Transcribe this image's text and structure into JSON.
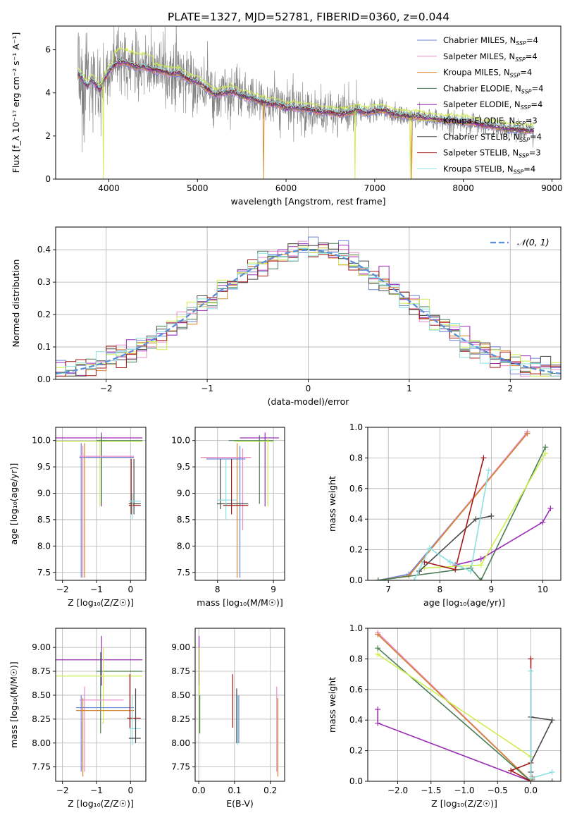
{
  "title": "PLATE=1327, MJD=52781, FIBERID=0360, z=0.044",
  "colors": {
    "Chabrier MILES": "#6b82d6",
    "Salpeter MILES": "#e98ccd",
    "Kroupa MILES": "#d6852c",
    "Chabrier ELODIE": "#4a7e56",
    "Salpeter ELODIE": "#9b2db5",
    "Kroupa ELODIE": "#ccef4e",
    "Chabrier STELIB": "#484848",
    "Salpeter STELIB": "#a31818",
    "Kroupa STELIB": "#8be0e0",
    "data": "#808080",
    "gaussian": "#5b8ed9",
    "grid": "#b0b0b0"
  },
  "chart_data": [
    {
      "id": "spectrum",
      "type": "line",
      "xlabel": "wavelength [Angstrom, rest frame]",
      "ylabel": "Flux [f_λ 10⁻¹⁷ erg cm⁻² s⁻¹ A⁻¹]",
      "xlim": [
        3400,
        9100
      ],
      "ylim": [
        0,
        7.1
      ],
      "xticks": [
        4000,
        5000,
        6000,
        7000,
        8000,
        9000
      ],
      "yticks": [
        0,
        2,
        4,
        6
      ],
      "grid": false,
      "legend_position": "upper right",
      "legend": [
        {
          "label": "Chabrier MILES, N",
          "sub": "SSP",
          "suffix": "=4",
          "color_key": "Chabrier MILES"
        },
        {
          "label": "Salpeter MILES, N",
          "sub": "SSP",
          "suffix": "=4",
          "color_key": "Salpeter MILES"
        },
        {
          "label": "Kroupa MILES, N",
          "sub": "SSP",
          "suffix": "=4",
          "color_key": "Kroupa MILES"
        },
        {
          "label": "Chabrier ELODIE, N",
          "sub": "SSP",
          "suffix": "=4",
          "color_key": "Chabrier ELODIE"
        },
        {
          "label": "Salpeter ELODIE, N",
          "sub": "SSP",
          "suffix": "=4",
          "color_key": "Salpeter ELODIE"
        },
        {
          "label": "Kroupa ELODIE, N",
          "sub": "SSP",
          "suffix": "=3",
          "color_key": "Kroupa ELODIE"
        },
        {
          "label": "Chabrier STELIB, N",
          "sub": "SSP",
          "suffix": "=4",
          "color_key": "Chabrier STELIB"
        },
        {
          "label": "Salpeter STELIB, N",
          "sub": "SSP",
          "suffix": "=3",
          "color_key": "Salpeter STELIB"
        },
        {
          "label": "Kroupa STELIB, N",
          "sub": "SSP",
          "suffix": "=4",
          "color_key": "Kroupa STELIB"
        }
      ],
      "model_continuum": [
        [
          3650,
          4.9
        ],
        [
          3700,
          4.6
        ],
        [
          3760,
          4.3
        ],
        [
          3800,
          4.6
        ],
        [
          3850,
          4.4
        ],
        [
          3900,
          4.1
        ],
        [
          3950,
          4.6
        ],
        [
          4000,
          5.0
        ],
        [
          4100,
          5.4
        ],
        [
          4200,
          5.4
        ],
        [
          4300,
          5.2
        ],
        [
          4400,
          5.2
        ],
        [
          4500,
          5.05
        ],
        [
          4600,
          5.0
        ],
        [
          4700,
          4.9
        ],
        [
          4800,
          4.9
        ],
        [
          4900,
          4.6
        ],
        [
          5000,
          4.5
        ],
        [
          5100,
          4.2
        ],
        [
          5200,
          3.9
        ],
        [
          5300,
          4.0
        ],
        [
          5400,
          4.05
        ],
        [
          5500,
          3.85
        ],
        [
          5600,
          3.75
        ],
        [
          5700,
          3.6
        ],
        [
          5800,
          3.5
        ],
        [
          5900,
          3.45
        ],
        [
          6000,
          3.3
        ],
        [
          6100,
          3.3
        ],
        [
          6200,
          3.25
        ],
        [
          6300,
          3.2
        ],
        [
          6400,
          3.1
        ],
        [
          6500,
          3.1
        ],
        [
          6600,
          3.0
        ],
        [
          6700,
          3.05
        ],
        [
          6800,
          3.2
        ],
        [
          6900,
          3.05
        ],
        [
          7000,
          3.15
        ],
        [
          7100,
          3.2
        ],
        [
          7200,
          3.0
        ],
        [
          7300,
          2.95
        ],
        [
          7400,
          2.9
        ],
        [
          7500,
          2.9
        ],
        [
          7600,
          2.8
        ],
        [
          7700,
          2.75
        ],
        [
          7800,
          2.7
        ],
        [
          7900,
          2.7
        ],
        [
          8000,
          2.65
        ],
        [
          8100,
          2.6
        ],
        [
          8200,
          2.5
        ],
        [
          8300,
          2.45
        ],
        [
          8400,
          2.4
        ],
        [
          8500,
          2.3
        ],
        [
          8600,
          2.3
        ],
        [
          8700,
          2.25
        ],
        [
          8800,
          2.25
        ]
      ],
      "dips": [
        {
          "x": 3935,
          "series": "Kroupa ELODIE"
        },
        {
          "x": 5745,
          "series": "Kroupa MILES"
        },
        {
          "x": 6780,
          "series": "Kroupa ELODIE"
        },
        {
          "x": 7420,
          "series": "Kroupa MILES"
        },
        {
          "x": 7405,
          "series": "Kroupa ELODIE"
        }
      ]
    },
    {
      "id": "residuals",
      "type": "bar",
      "xlabel": "(data-model)/error",
      "ylabel": "Normed distribution",
      "xlim": [
        -2.5,
        2.5
      ],
      "ylim": [
        0,
        0.47
      ],
      "xticks": [
        -2,
        -1,
        0,
        1,
        2
      ],
      "yticks": [
        0.0,
        0.1,
        0.2,
        0.3,
        0.4
      ],
      "grid": true,
      "bin_width": 0.1,
      "legend": "𝒩(0, 1)"
    },
    {
      "id": "age_vs_Z",
      "type": "scatter",
      "xlabel": "Z [log₁₀(Z/Z☉)]",
      "ylabel": "age  [log₁₀(age/yr)]",
      "xlim": [
        -2.2,
        0.45
      ],
      "ylim": [
        7.35,
        10.25
      ],
      "xticks": [
        -2,
        -1,
        0
      ],
      "yticks": [
        7.5,
        8.0,
        8.5,
        9.0,
        9.5,
        10.0
      ],
      "grid": true
    },
    {
      "id": "age_vs_mass",
      "type": "scatter",
      "xlabel": "mass [log₁₀(M/M☉)]",
      "ylabel": "",
      "xlim": [
        7.6,
        9.2
      ],
      "ylim": [
        7.35,
        10.25
      ],
      "xticks": [
        8,
        9
      ],
      "yticks": [
        7.5,
        8.0,
        8.5,
        9.0,
        9.5,
        10.0
      ],
      "grid": true
    },
    {
      "id": "weight_vs_age",
      "type": "line",
      "xlabel": "age  [log₁₀(age/yr)]",
      "ylabel": "mass weight",
      "xlim": [
        6.6,
        10.35
      ],
      "ylim": [
        0,
        1.0
      ],
      "xticks": [
        7,
        8,
        9,
        10
      ],
      "yticks": [
        0.0,
        0.2,
        0.4,
        0.6,
        0.8,
        1.0
      ],
      "grid": true,
      "series": [
        {
          "name": "Chabrier MILES",
          "points": [
            [
              6.8,
              0.0
            ],
            [
              7.4,
              0.04
            ],
            [
              9.7,
              0.96
            ]
          ]
        },
        {
          "name": "Salpeter MILES",
          "points": [
            [
              6.8,
              0.0
            ],
            [
              7.4,
              0.03
            ],
            [
              9.7,
              0.97
            ]
          ]
        },
        {
          "name": "Kroupa MILES",
          "points": [
            [
              6.8,
              0.0
            ],
            [
              7.4,
              0.03
            ],
            [
              9.7,
              0.96
            ]
          ]
        },
        {
          "name": "Chabrier ELODIE",
          "points": [
            [
              6.8,
              0.0
            ],
            [
              8.6,
              0.08
            ],
            [
              8.8,
              0.0
            ],
            [
              10.05,
              0.87
            ]
          ]
        },
        {
          "name": "Salpeter ELODIE",
          "points": [
            [
              8.3,
              0.1
            ],
            [
              8.8,
              0.14
            ],
            [
              10.0,
              0.38
            ],
            [
              10.15,
              0.47
            ]
          ]
        },
        {
          "name": "Kroupa ELODIE",
          "points": [
            [
              7.7,
              0.08
            ],
            [
              8.8,
              0.1
            ],
            [
              10.05,
              0.83
            ]
          ]
        },
        {
          "name": "Chabrier STELIB",
          "points": [
            [
              7.6,
              0.06
            ],
            [
              8.7,
              0.4
            ],
            [
              9.0,
              0.42
            ]
          ]
        },
        {
          "name": "Salpeter STELIB",
          "points": [
            [
              7.7,
              0.12
            ],
            [
              8.3,
              0.07
            ],
            [
              8.85,
              0.8
            ]
          ]
        },
        {
          "name": "Kroupa STELIB",
          "points": [
            [
              7.5,
              0.0
            ],
            [
              7.8,
              0.21
            ],
            [
              8.2,
              0.12
            ],
            [
              8.6,
              0.06
            ],
            [
              8.95,
              0.72
            ]
          ]
        }
      ]
    },
    {
      "id": "mass_vs_Z",
      "type": "scatter",
      "xlabel": "Z [log₁₀(Z/Z☉)]",
      "ylabel": "mass [log₁₀(M/M☉)]",
      "xlim": [
        -2.2,
        0.45
      ],
      "ylim": [
        7.6,
        9.2
      ],
      "xticks": [
        -2,
        -1,
        0
      ],
      "yticks": [
        7.75,
        8.0,
        8.25,
        8.5,
        8.75,
        9.0
      ],
      "grid": true
    },
    {
      "id": "mass_vs_EBV",
      "type": "scatter",
      "xlabel": "E(B-V)",
      "ylabel": "",
      "xlim": [
        -0.01,
        0.24
      ],
      "ylim": [
        7.6,
        9.2
      ],
      "xticks": [
        0.0,
        0.1,
        0.2
      ],
      "yticks": [
        7.75,
        8.0,
        8.25,
        8.5,
        8.75,
        9.0
      ],
      "grid": true,
      "errorbars": [
        {
          "name": "Salpeter ELODIE",
          "x": 0.001,
          "y0": 8.6,
          "y1": 9.12
        },
        {
          "name": "Kroupa ELODIE",
          "x": 0.002,
          "y0": 8.1,
          "y1": 9.0
        },
        {
          "name": "Chabrier ELODIE",
          "x": 0.003,
          "y0": 8.1,
          "y1": 8.5
        },
        {
          "name": "Salpeter STELIB",
          "x": 0.095,
          "y0": 8.16,
          "y1": 8.72
        },
        {
          "name": "Chabrier STELIB",
          "x": 0.106,
          "y0": 8.0,
          "y1": 8.57
        },
        {
          "name": "Kroupa STELIB",
          "x": 0.109,
          "y0": 7.98,
          "y1": 8.5
        },
        {
          "name": "Chabrier MILES",
          "x": 0.112,
          "y0": 8.0,
          "y1": 8.5
        },
        {
          "name": "Salpeter MILES",
          "x": 0.218,
          "y0": 7.7,
          "y1": 8.59
        },
        {
          "name": "Kroupa MILES",
          "x": 0.221,
          "y0": 7.65,
          "y1": 8.47
        }
      ]
    },
    {
      "id": "weight_vs_Z",
      "type": "line",
      "xlabel": "Z [log₁₀(Z/Z☉)]",
      "ylabel": "mass weight",
      "xlim": [
        -2.45,
        0.45
      ],
      "ylim": [
        0,
        1.0
      ],
      "xticks": [
        -2.0,
        -1.5,
        -1.0,
        -0.5,
        0.0
      ],
      "yticks": [
        0.0,
        0.2,
        0.4,
        0.6,
        0.8,
        1.0
      ],
      "grid": true,
      "series": [
        {
          "name": "Chabrier MILES",
          "points": [
            [
              -2.3,
              0.96
            ],
            [
              0.0,
              0.0
            ],
            [
              0.02,
              0.01
            ]
          ]
        },
        {
          "name": "Salpeter MILES",
          "points": [
            [
              -2.3,
              0.97
            ],
            [
              0.0,
              0.0
            ],
            [
              0.02,
              0.03
            ]
          ]
        },
        {
          "name": "Kroupa MILES",
          "points": [
            [
              -2.3,
              0.96
            ],
            [
              0.0,
              0.0
            ],
            [
              0.02,
              0.02
            ]
          ]
        },
        {
          "name": "Chabrier ELODIE",
          "points": [
            [
              -2.3,
              0.87
            ],
            [
              0.0,
              0.0
            ],
            [
              0.32,
              0.0
            ]
          ]
        },
        {
          "name": "Salpeter ELODIE",
          "points": [
            [
              -2.3,
              0.47
            ],
            [
              -2.3,
              0.38
            ],
            [
              0.0,
              0.0
            ]
          ]
        },
        {
          "name": "Kroupa ELODIE",
          "points": [
            [
              -2.3,
              0.83
            ],
            [
              0.0,
              0.16
            ],
            [
              0.0,
              0.0
            ]
          ]
        },
        {
          "name": "Chabrier STELIB",
          "points": [
            [
              0.0,
              0.42
            ],
            [
              0.32,
              0.4
            ],
            [
              0.0,
              0.12
            ],
            [
              0.0,
              0.06
            ]
          ]
        },
        {
          "name": "Salpeter STELIB",
          "points": [
            [
              0.0,
              0.8
            ],
            [
              0.0,
              0.12
            ],
            [
              -0.3,
              0.07
            ],
            [
              0.0,
              0.0
            ]
          ]
        },
        {
          "name": "Kroupa STELIB",
          "points": [
            [
              0.0,
              0.72
            ],
            [
              0.0,
              0.2
            ],
            [
              0.0,
              0.02
            ],
            [
              0.32,
              0.06
            ]
          ]
        }
      ]
    }
  ]
}
